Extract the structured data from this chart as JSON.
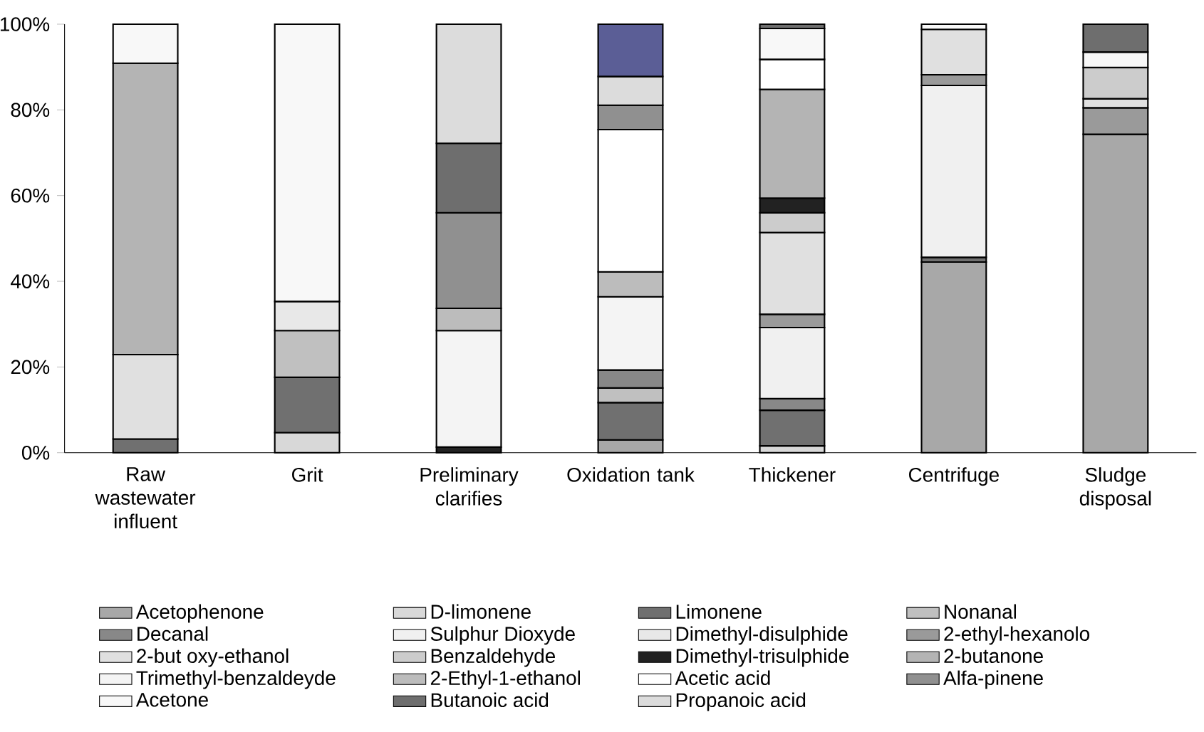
{
  "chart_data": {
    "type": "bar",
    "stacked": true,
    "categories": [
      "Raw wastewater influent",
      "Grit",
      "Preliminary clarifies",
      "Oxidation tank",
      "Thickener",
      "Centrifuge",
      "Sludge disposal"
    ],
    "ylim": [
      0,
      100
    ],
    "yticks": [
      {
        "value": 0,
        "label": "0%"
      },
      {
        "value": 20,
        "label": "20%"
      },
      {
        "value": 40,
        "label": "40%"
      },
      {
        "value": 60,
        "label": "60%"
      },
      {
        "value": 80,
        "label": "80%"
      },
      {
        "value": 100,
        "label": "100%"
      }
    ],
    "legend": "bottom",
    "series": [
      {
        "name": "Acetophenone",
        "color": "#a8a8a8",
        "values": [
          null,
          null,
          null,
          3.0,
          null,
          44.5,
          74.3
        ]
      },
      {
        "name": "D-limonene",
        "color": "#d8d8d8",
        "values": [
          null,
          4.7,
          null,
          null,
          1.6,
          null,
          null
        ]
      },
      {
        "name": "Limonene",
        "color": "#707070",
        "values": [
          3.2,
          12.9,
          null,
          8.7,
          8.3,
          1.1,
          null
        ]
      },
      {
        "name": "Nonanal",
        "color": "#c0c0c0",
        "values": [
          null,
          10.9,
          null,
          3.4,
          null,
          null,
          null
        ]
      },
      {
        "name": "Decanal",
        "color": "#888888",
        "values": [
          null,
          null,
          null,
          4.2,
          2.7,
          null,
          null
        ]
      },
      {
        "name": "Sulphur Dioxyde",
        "color": "#f0f0f0",
        "values": [
          null,
          null,
          null,
          null,
          16.6,
          40.1,
          null
        ]
      },
      {
        "name": "Dimethyl-disulphide",
        "color": "#e8e8e8",
        "values": [
          null,
          6.8,
          null,
          null,
          null,
          null,
          null
        ]
      },
      {
        "name": "2-ethyl-hexanolo",
        "color": "#9a9a9a",
        "values": [
          null,
          null,
          null,
          null,
          3.1,
          2.5,
          6.2
        ]
      },
      {
        "name": "2-but oxy-ethanol",
        "color": "#e0e0e0",
        "values": [
          19.7,
          null,
          null,
          null,
          19.1,
          10.6,
          2.1
        ]
      },
      {
        "name": "Benzaldehyde",
        "color": "#cccccc",
        "values": [
          null,
          null,
          null,
          null,
          4.6,
          null,
          7.3
        ]
      },
      {
        "name": "Dimethyl-trisulphide",
        "color": "#222222",
        "values": [
          null,
          null,
          1.3,
          null,
          3.4,
          null,
          null
        ]
      },
      {
        "name": "2-butanone",
        "color": "#b4b4b4",
        "values": [
          68.0,
          null,
          null,
          null,
          25.4,
          null,
          null
        ]
      },
      {
        "name": "Trimethyl-benzaldeyde",
        "color": "#f4f4f4",
        "values": [
          null,
          null,
          27.2,
          17.1,
          null,
          null,
          null
        ]
      },
      {
        "name": "2-Ethyl-1-ethanol",
        "color": "#bcbcbc",
        "values": [
          null,
          null,
          5.2,
          5.8,
          null,
          null,
          null
        ]
      },
      {
        "name": "Acetic acid",
        "color": "#ffffff",
        "values": [
          null,
          null,
          null,
          33.2,
          7.0,
          null,
          null
        ]
      },
      {
        "name": "Alfa-pinene",
        "color": "#909090",
        "values": [
          null,
          null,
          22.3,
          5.7,
          null,
          null,
          null
        ]
      },
      {
        "name": "Acetone",
        "color": "#f8f8f8",
        "values": [
          9.1,
          64.7,
          null,
          null,
          7.2,
          1.2,
          3.6
        ]
      },
      {
        "name": "Butanoic acid",
        "color": "#6e6e6e",
        "values": [
          null,
          null,
          16.2,
          null,
          1.0,
          null,
          6.5
        ]
      },
      {
        "name": "Propanoic acid",
        "color": "#dcdcdc",
        "values": [
          null,
          null,
          27.8,
          6.7,
          null,
          null,
          null
        ]
      },
      {
        "color": "#5b5e96",
        "values": [
          null,
          null,
          null,
          12.2,
          null,
          null,
          null
        ]
      }
    ]
  }
}
